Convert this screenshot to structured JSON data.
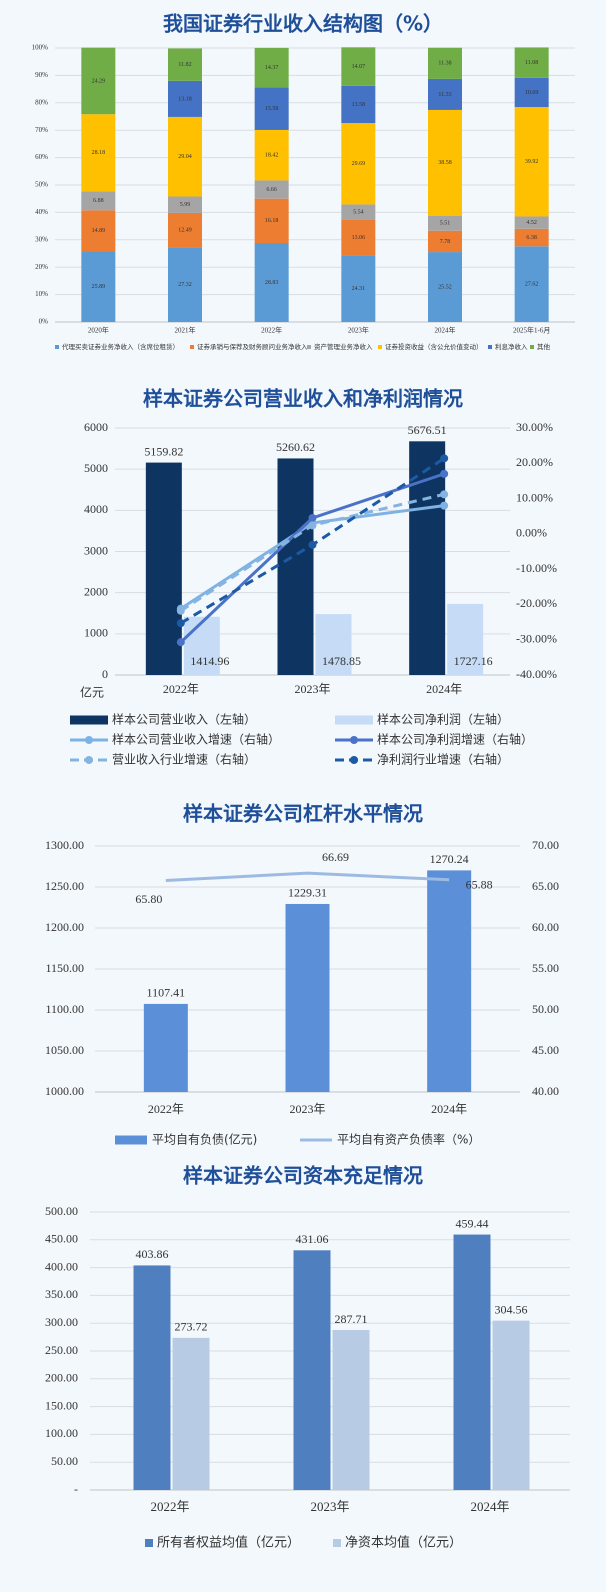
{
  "chart_data": [
    {
      "type": "bar",
      "stacked": true,
      "title": "我国证券行业收入结构图（%）",
      "categories": [
        "2020年",
        "2021年",
        "2022年",
        "2023年",
        "2024年",
        "2025年1-6月"
      ],
      "ylim": [
        0,
        100
      ],
      "yticks": [
        {
          "value": 0,
          "label": "0%"
        },
        {
          "value": 10,
          "label": "10%"
        },
        {
          "value": 20,
          "label": "20%"
        },
        {
          "value": 30,
          "label": "30%"
        },
        {
          "value": 40,
          "label": "40%"
        },
        {
          "value": 50,
          "label": "50%"
        },
        {
          "value": 60,
          "label": "60%"
        },
        {
          "value": 70,
          "label": "70%"
        },
        {
          "value": 80,
          "label": "80%"
        },
        {
          "value": 90,
          "label": "90%"
        },
        {
          "value": 100,
          "label": "100%"
        }
      ],
      "grid": true,
      "series": [
        {
          "name": "代理买卖证券业务净收入（含席位租赁）",
          "type": "bar",
          "color": "#5b9bd5",
          "values": [
            25.89,
            27.32,
            28.83,
            24.31,
            25.52,
            27.62
          ],
          "data_labels": true
        },
        {
          "name": "证券承销与保荐及财务顾问业务净收入",
          "type": "bar",
          "color": "#ed7d31",
          "values": [
            14.89,
            12.49,
            16.18,
            13.06,
            7.78,
            6.38
          ],
          "data_labels": true
        },
        {
          "name": "资产管理业务净收入",
          "type": "bar",
          "color": "#a5a5a5",
          "values": [
            6.88,
            5.99,
            6.66,
            5.54,
            5.51,
            4.52
          ],
          "data_labels": true
        },
        {
          "name": "证券投资收益（含公允价值变动）",
          "type": "bar",
          "color": "#ffc000",
          "values": [
            28.18,
            29.04,
            18.42,
            29.69,
            38.58,
            39.92
          ],
          "data_labels": true
        },
        {
          "name": "利息净收入",
          "type": "bar",
          "color": "#4472c4",
          "values": [
            null,
            13.18,
            15.58,
            13.58,
            11.33,
            10.69
          ],
          "data_labels": true
        },
        {
          "name": "其他",
          "type": "bar",
          "color": "#70ad47",
          "values": [
            24.29,
            11.82,
            14.37,
            14.07,
            11.38,
            11.08
          ],
          "data_labels": true
        }
      ]
    },
    {
      "type": "combo",
      "title": "样本证券公司营业收入和净利润情况",
      "categories": [
        "2022年",
        "2023年",
        "2024年"
      ],
      "y_unit": "亿元",
      "ylim": [
        0,
        6000
      ],
      "yticks": [
        0,
        1000,
        2000,
        3000,
        4000,
        5000,
        6000
      ],
      "y2lim": [
        -40,
        30
      ],
      "y2ticks": [
        {
          "value": -40,
          "label": "-40.00%"
        },
        {
          "value": -30,
          "label": "-30.00%"
        },
        {
          "value": -20,
          "label": "-20.00%"
        },
        {
          "value": -10,
          "label": "-10.00%"
        },
        {
          "value": 0,
          "label": "0.00%"
        },
        {
          "value": 10,
          "label": "10.00%"
        },
        {
          "value": 20,
          "label": "20.00%"
        },
        {
          "value": 30,
          "label": "30.00%"
        }
      ],
      "grid": true,
      "series": [
        {
          "name": "样本公司营业收入（左轴）",
          "type": "bar",
          "color": "#0e3561",
          "values": [
            5159.82,
            5260.62,
            5676.51
          ],
          "data_labels": true
        },
        {
          "name": "样本公司净利润（左轴）",
          "type": "bar",
          "color": "#c6dbf5",
          "values": [
            1414.96,
            1478.85,
            1727.16
          ],
          "data_labels": true
        },
        {
          "name": "样本公司营业收入增速（右轴）",
          "type": "line",
          "axis": "y2",
          "color": "#7eb2e4",
          "markers": true,
          "values": [
            -21.2,
            3.1,
            8.0
          ]
        },
        {
          "name": "样本公司净利润增速（右轴）",
          "type": "line",
          "axis": "y2",
          "color": "#4a72c8",
          "markers": true,
          "values": [
            -30.7,
            4.5,
            17.0
          ]
        },
        {
          "name": "营业收入行业增速（右轴）",
          "type": "line",
          "axis": "y2",
          "color": "#86b4e2",
          "dash": true,
          "markers": true,
          "values": [
            -21.8,
            2.4,
            11.2
          ]
        },
        {
          "name": "净利润行业增速（右轴）",
          "type": "line",
          "axis": "y2",
          "color": "#1c5aa6",
          "dash": true,
          "markers": true,
          "values": [
            -25.3,
            -3.1,
            21.4
          ]
        }
      ]
    },
    {
      "type": "combo",
      "title": "样本证券公司杠杆水平情况",
      "categories": [
        "2022年",
        "2023年",
        "2024年"
      ],
      "ylim": [
        1000,
        1300
      ],
      "yticks": [
        {
          "value": 1000,
          "label": "1000.00"
        },
        {
          "value": 1050,
          "label": "1050.00"
        },
        {
          "value": 1100,
          "label": "1100.00"
        },
        {
          "value": 1150,
          "label": "1150.00"
        },
        {
          "value": 1200,
          "label": "1200.00"
        },
        {
          "value": 1250,
          "label": "1250.00"
        },
        {
          "value": 1300,
          "label": "1300.00"
        }
      ],
      "y2lim": [
        40,
        70
      ],
      "y2ticks": [
        {
          "value": 40,
          "label": "40.00"
        },
        {
          "value": 45,
          "label": "45.00"
        },
        {
          "value": 50,
          "label": "50.00"
        },
        {
          "value": 55,
          "label": "55.00"
        },
        {
          "value": 60,
          "label": "60.00"
        },
        {
          "value": 65,
          "label": "65.00"
        },
        {
          "value": 70,
          "label": "70.00"
        }
      ],
      "grid": true,
      "series": [
        {
          "name": "平均自有负债(亿元)",
          "type": "bar",
          "color": "#5b8fd8",
          "values": [
            1107.41,
            1229.31,
            1270.24
          ],
          "data_labels": true
        },
        {
          "name": "平均自有资产负债率（%）",
          "type": "line",
          "axis": "y2",
          "color": "#9dbbe2",
          "values": [
            65.8,
            66.69,
            65.88
          ],
          "value_labels": [
            "65.80",
            "66.69",
            "65.88"
          ],
          "data_labels": true
        }
      ]
    },
    {
      "type": "bar",
      "title": "样本证券公司资本充足情况",
      "categories": [
        "2022年",
        "2023年",
        "2024年"
      ],
      "ylim": [
        0,
        500
      ],
      "yticks": [
        {
          "value": 0,
          "label": "-"
        },
        {
          "value": 50,
          "label": "50.00"
        },
        {
          "value": 100,
          "label": "100.00"
        },
        {
          "value": 150,
          "label": "150.00"
        },
        {
          "value": 200,
          "label": "200.00"
        },
        {
          "value": 250,
          "label": "250.00"
        },
        {
          "value": 300,
          "label": "300.00"
        },
        {
          "value": 350,
          "label": "350.00"
        },
        {
          "value": 400,
          "label": "400.00"
        },
        {
          "value": 450,
          "label": "450.00"
        },
        {
          "value": 500,
          "label": "500.00"
        }
      ],
      "grid": true,
      "series": [
        {
          "name": "所有者权益均值（亿元）",
          "type": "bar",
          "color": "#4f7fbe",
          "values": [
            403.86,
            431.06,
            459.44
          ],
          "data_labels": true
        },
        {
          "name": "净资本均值（亿元）",
          "type": "bar",
          "color": "#b7cbe4",
          "values": [
            273.72,
            287.71,
            304.56
          ],
          "data_labels": true
        }
      ]
    }
  ]
}
